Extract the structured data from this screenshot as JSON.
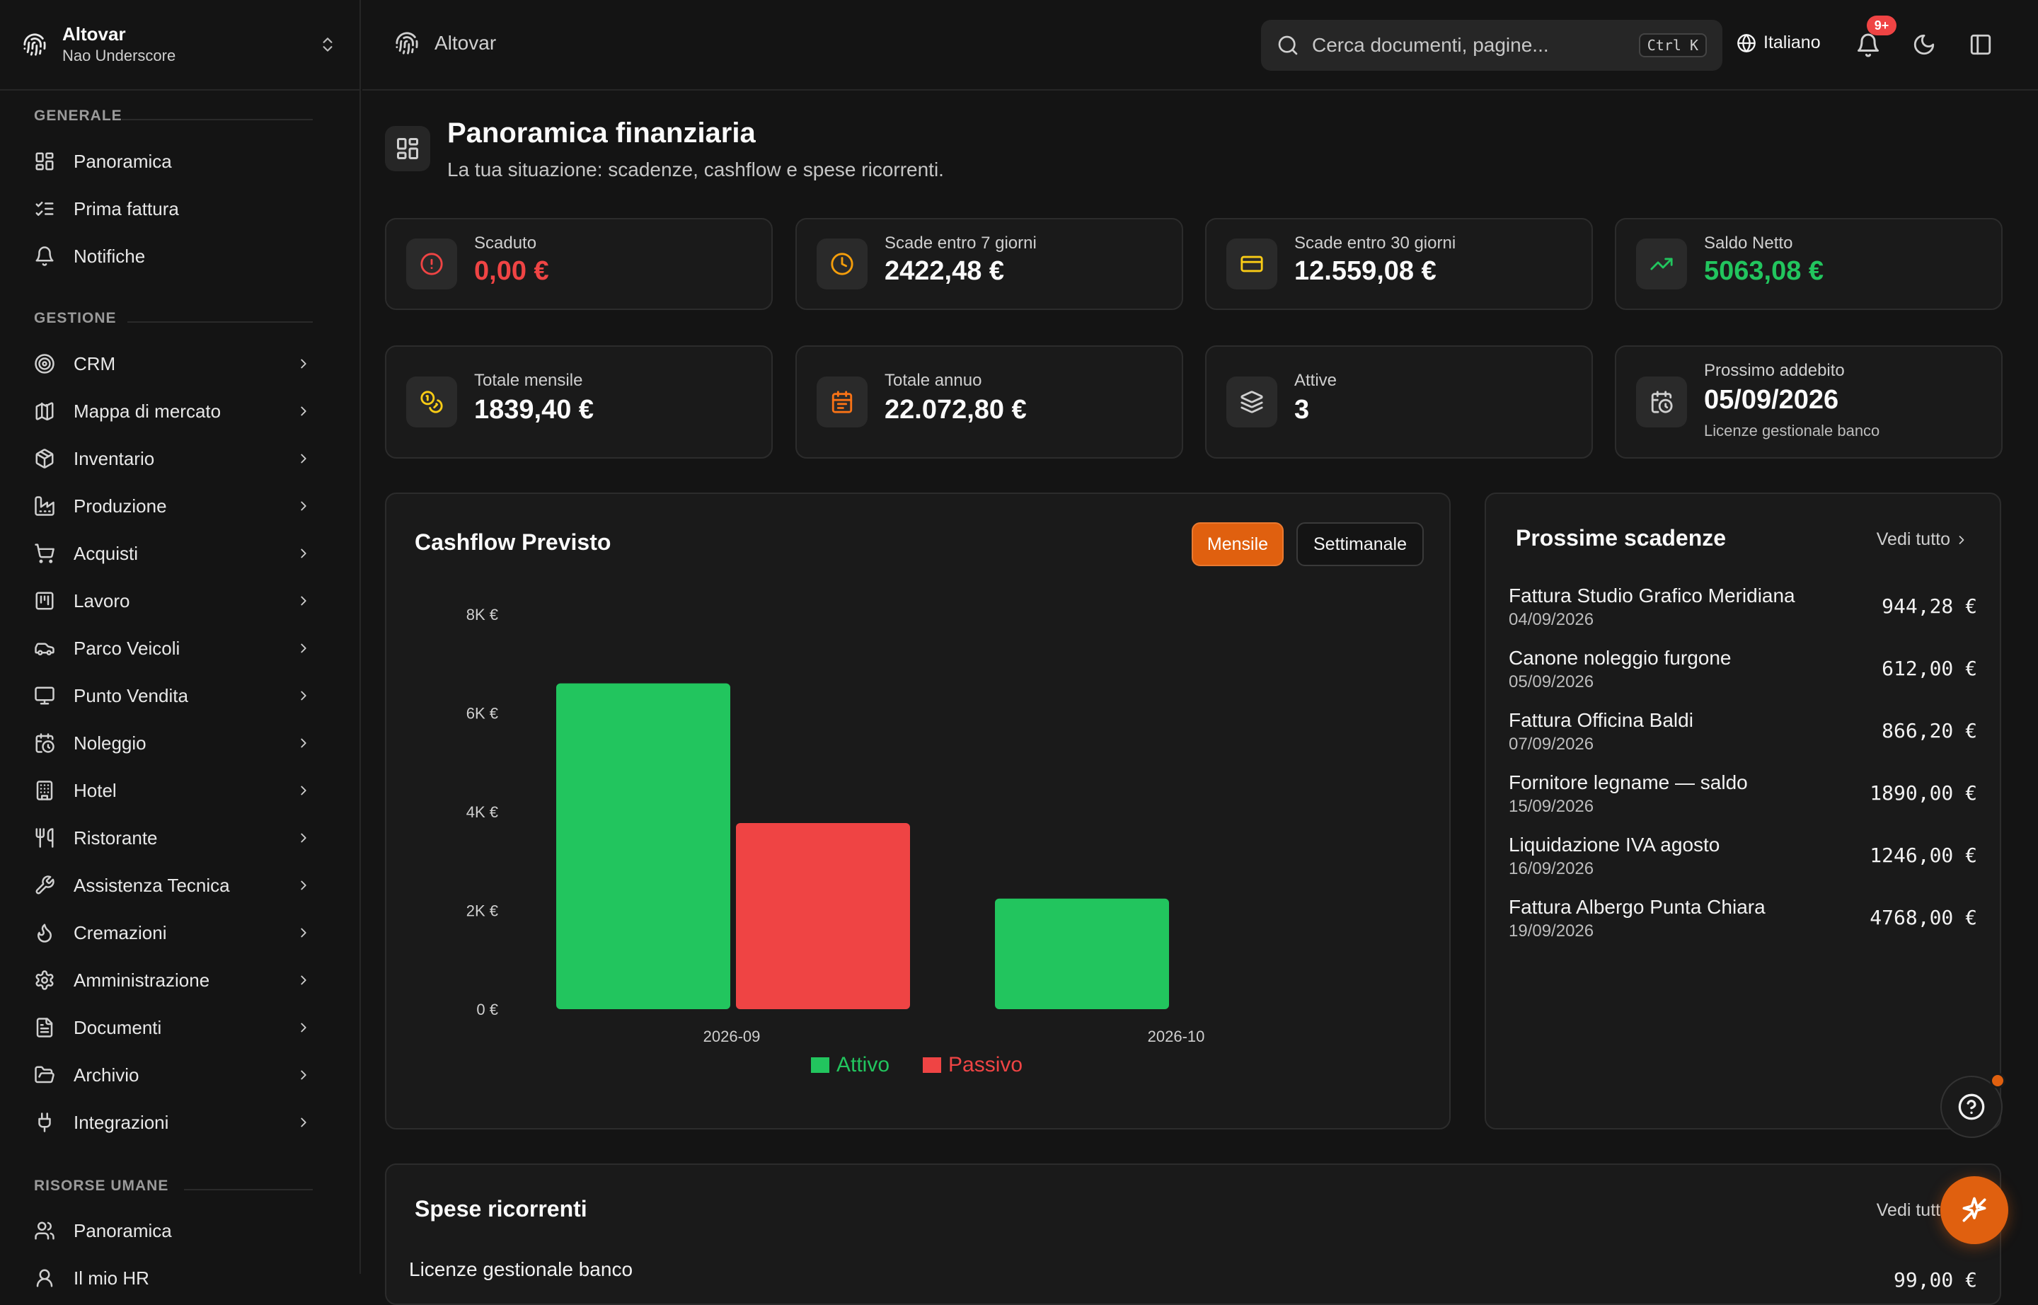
{
  "sidebar": {
    "org_name": "Altovar",
    "user_name": "Nao Underscore",
    "sections": {
      "generale": "GENERALE",
      "gestione": "GESTIONE",
      "risorse_umane": "RISORSE UMANE"
    },
    "generale_items": [
      {
        "label": "Panoramica",
        "icon": "dashboard-icon"
      },
      {
        "label": "Prima fattura",
        "icon": "list-check-icon"
      },
      {
        "label": "Notifiche",
        "icon": "bell-icon"
      }
    ],
    "gestione_items": [
      {
        "label": "CRM",
        "icon": "target-icon"
      },
      {
        "label": "Mappa di mercato",
        "icon": "map-icon"
      },
      {
        "label": "Inventario",
        "icon": "package-icon"
      },
      {
        "label": "Produzione",
        "icon": "factory-icon"
      },
      {
        "label": "Acquisti",
        "icon": "cart-icon"
      },
      {
        "label": "Lavoro",
        "icon": "kanban-icon"
      },
      {
        "label": "Parco Veicoli",
        "icon": "car-icon"
      },
      {
        "label": "Punto Vendita",
        "icon": "monitor-icon"
      },
      {
        "label": "Noleggio",
        "icon": "calendar-clock-icon"
      },
      {
        "label": "Hotel",
        "icon": "building-icon"
      },
      {
        "label": "Ristorante",
        "icon": "utensils-icon"
      },
      {
        "label": "Assistenza Tecnica",
        "icon": "wrench-icon"
      },
      {
        "label": "Cremazioni",
        "icon": "flame-icon"
      },
      {
        "label": "Amministrazione",
        "icon": "gear-icon"
      },
      {
        "label": "Documenti",
        "icon": "document-icon"
      },
      {
        "label": "Archivio",
        "icon": "folder-open-icon"
      },
      {
        "label": "Integrazioni",
        "icon": "plug-icon"
      }
    ],
    "risorse_items": [
      {
        "label": "Panoramica",
        "icon": "users-icon"
      },
      {
        "label": "Il mio HR",
        "icon": "user-icon"
      }
    ]
  },
  "topbar": {
    "breadcrumb": "Altovar",
    "search_placeholder": "Cerca documenti, pagine...",
    "search_shortcut": "Ctrl K",
    "language": "Italiano",
    "notifications_badge": "9+"
  },
  "page": {
    "title": "Panoramica finanziaria",
    "subtitle": "La tua situazione: scadenze, cashflow e spese ricorrenti."
  },
  "kpis_row1": [
    {
      "label": "Scaduto",
      "value": "0,00 €",
      "icon": "alert-circle-icon",
      "color": "#ef4444"
    },
    {
      "label": "Scade entro 7 giorni",
      "value": "2422,48 €",
      "icon": "clock-icon",
      "color": "#f59e0b"
    },
    {
      "label": "Scade entro 30 giorni",
      "value": "12.559,08 €",
      "icon": "credit-card-icon",
      "color": "#facc15"
    },
    {
      "label": "Saldo Netto",
      "value": "5063,08 €",
      "icon": "trending-up-icon",
      "color": "#22c55e"
    }
  ],
  "kpis_row2": [
    {
      "label": "Totale mensile",
      "value": "1839,40 €",
      "icon": "coins-icon",
      "color": "#facc15"
    },
    {
      "label": "Totale annuo",
      "value": "22.072,80 €",
      "icon": "calendar-icon",
      "color": "#f97316"
    },
    {
      "label": "Attive",
      "value": "3",
      "icon": "layers-icon",
      "color": "#cfcfcf"
    },
    {
      "label": "Prossimo addebito",
      "value": "05/09/2026",
      "sub": "Licenze gestionale banco",
      "icon": "calendar-clock-icon",
      "color": "#cfcfcf"
    }
  ],
  "cashflow": {
    "title": "Cashflow Previsto",
    "toggle_monthly": "Mensile",
    "toggle_weekly": "Settimanale"
  },
  "chart_data": {
    "type": "bar",
    "title": "Cashflow Previsto",
    "categories": [
      "2026-09",
      "2026-10"
    ],
    "series": [
      {
        "name": "Attivo",
        "color": "#22c55e",
        "values": [
          6600,
          2240
        ]
      },
      {
        "name": "Passivo",
        "color": "#ef4444",
        "values": [
          3770,
          0
        ]
      }
    ],
    "yticks": [
      "0 €",
      "2K €",
      "4K €",
      "6K €",
      "8K €"
    ],
    "ytick_values": [
      0,
      2000,
      4000,
      6000,
      8000
    ],
    "ylim": [
      0,
      8000
    ],
    "legend": "bottom"
  },
  "upcoming": {
    "title": "Prossime scadenze",
    "see_all": "Vedi tutto",
    "items": [
      {
        "name": "Fattura Studio Grafico Meridiana",
        "date": "04/09/2026",
        "amount": "944,28 €"
      },
      {
        "name": "Canone noleggio furgone",
        "date": "05/09/2026",
        "amount": "612,00 €"
      },
      {
        "name": "Fattura Officina Baldi",
        "date": "07/09/2026",
        "amount": "866,20 €"
      },
      {
        "name": "Fornitore legname — saldo",
        "date": "15/09/2026",
        "amount": "1890,00 €"
      },
      {
        "name": "Liquidazione IVA agosto",
        "date": "16/09/2026",
        "amount": "1246,00 €"
      },
      {
        "name": "Fattura Albergo Punta Chiara",
        "date": "19/09/2026",
        "amount": "4768,00 €"
      }
    ]
  },
  "recurring": {
    "title": "Spese ricorrenti",
    "see_all": "Vedi tutto",
    "first_item": "Licenze gestionale banco",
    "first_amount": "99,00 €"
  }
}
